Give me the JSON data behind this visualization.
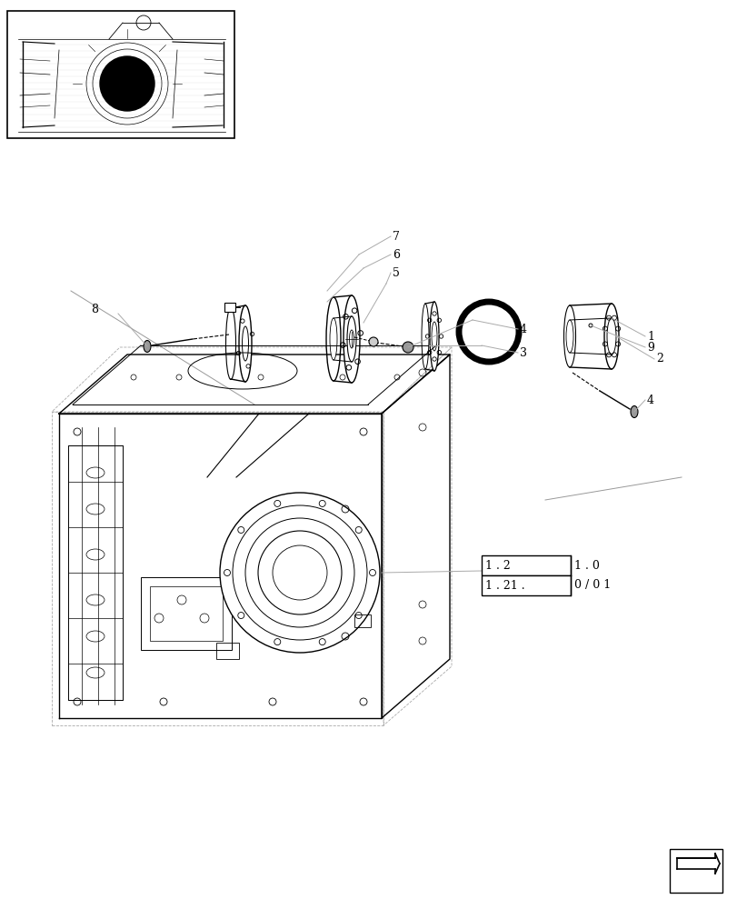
{
  "bg_color": "#ffffff",
  "line_color": "#000000",
  "light_line_color": "#aaaaaa",
  "label_font_size": 9,
  "ref_top_inside": "1 . 2",
  "ref_top_outside": "1 . 0",
  "ref_bot_inside": "1 . 21 .",
  "ref_bot_outside": "0 / 0 1"
}
